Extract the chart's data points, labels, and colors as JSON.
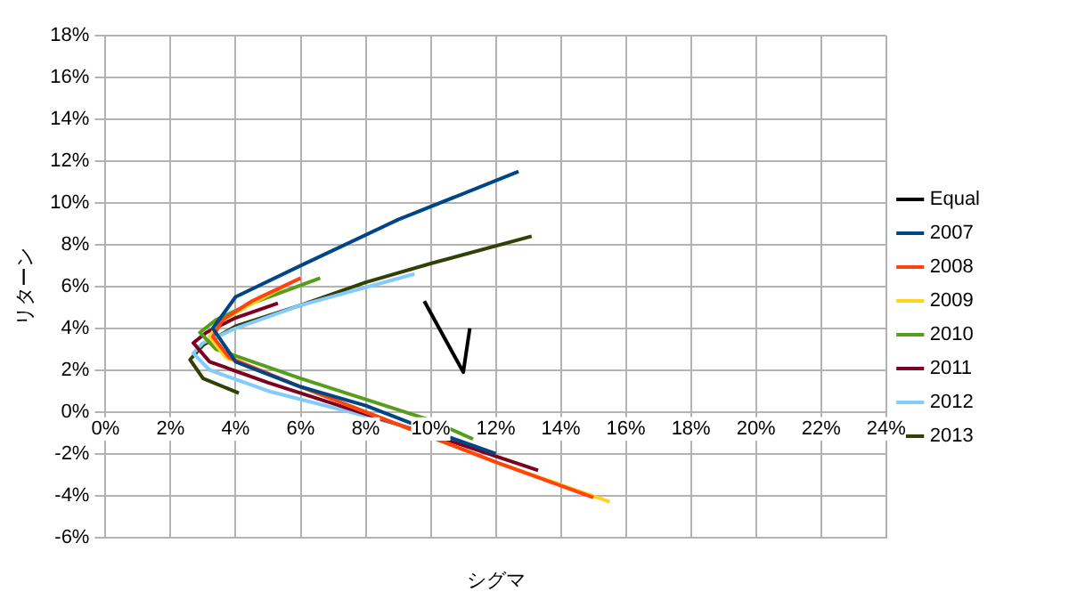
{
  "chart_data": {
    "type": "line",
    "xlabel": "シグマ",
    "ylabel": "リターン",
    "xlim": [
      0,
      24
    ],
    "ylim": [
      -6,
      18
    ],
    "xticks": [
      {
        "value": 0,
        "label": "0%"
      },
      {
        "value": 2,
        "label": "2%"
      },
      {
        "value": 4,
        "label": "4%"
      },
      {
        "value": 6,
        "label": "6%"
      },
      {
        "value": 8,
        "label": "8%"
      },
      {
        "value": 10,
        "label": "10%"
      },
      {
        "value": 12,
        "label": "12%"
      },
      {
        "value": 14,
        "label": "14%"
      },
      {
        "value": 16,
        "label": "16%"
      },
      {
        "value": 18,
        "label": "18%"
      },
      {
        "value": 20,
        "label": "20%"
      },
      {
        "value": 22,
        "label": "22%"
      },
      {
        "value": 24,
        "label": "24%"
      }
    ],
    "yticks": [
      {
        "value": -6,
        "label": "-6%"
      },
      {
        "value": -4,
        "label": "-4%"
      },
      {
        "value": -2,
        "label": "-2%"
      },
      {
        "value": 0,
        "label": "0%"
      },
      {
        "value": 2,
        "label": "2%"
      },
      {
        "value": 4,
        "label": "4%"
      },
      {
        "value": 6,
        "label": "6%"
      },
      {
        "value": 8,
        "label": "8%"
      },
      {
        "value": 10,
        "label": "10%"
      },
      {
        "value": 12,
        "label": "12%"
      },
      {
        "value": 14,
        "label": "14%"
      },
      {
        "value": 16,
        "label": "16%"
      },
      {
        "value": 18,
        "label": "18%"
      }
    ],
    "grid": true,
    "legend": "right",
    "series": [
      {
        "name": "Equal",
        "color": "#000000",
        "x": [
          9.8,
          11.0,
          11.2
        ],
        "values": [
          5.3,
          1.9,
          4.0
        ]
      },
      {
        "name": "2007",
        "color": "#004586",
        "x": [
          12.7,
          9,
          6,
          4,
          3.3,
          4,
          6,
          8,
          10,
          12
        ],
        "values": [
          11.5,
          9.2,
          7.0,
          5.5,
          4.0,
          2.4,
          1.2,
          0.3,
          -0.9,
          -2.0
        ]
      },
      {
        "name": "2008",
        "color": "#ff420e",
        "x": [
          6,
          4.5,
          3.6,
          3.3,
          3.8,
          6,
          9,
          12,
          15
        ],
        "values": [
          6.4,
          5.3,
          4.4,
          3.6,
          2.6,
          1.2,
          -0.6,
          -2.4,
          -4.1
        ]
      },
      {
        "name": "2009",
        "color": "#ffd320",
        "x": [
          5.5,
          4.3,
          3.5,
          3.2,
          3.7,
          6,
          9,
          12,
          15.5
        ],
        "values": [
          6.0,
          5.0,
          4.3,
          3.6,
          2.6,
          1.2,
          -0.6,
          -2.4,
          -4.3
        ]
      },
      {
        "name": "2010",
        "color": "#579d1c",
        "x": [
          6.6,
          4.5,
          3.4,
          2.9,
          3.4,
          6,
          8,
          10,
          11.3
        ],
        "values": [
          6.4,
          5.2,
          4.4,
          3.8,
          3.0,
          1.6,
          0.6,
          -0.4,
          -1.3
        ]
      },
      {
        "name": "2011",
        "color": "#7e0021",
        "x": [
          5.3,
          4,
          3.1,
          2.7,
          3.2,
          5,
          8,
          11,
          13.3
        ],
        "values": [
          5.2,
          4.5,
          3.8,
          3.3,
          2.4,
          1.4,
          -0.1,
          -1.6,
          -2.8
        ]
      },
      {
        "name": "2012",
        "color": "#83caff",
        "x": [
          9.5,
          6,
          4,
          3,
          2.7,
          3.2,
          5,
          8,
          9
        ],
        "values": [
          6.6,
          5.1,
          4.0,
          3.3,
          2.8,
          2.0,
          1.0,
          -0.2,
          -0.6
        ]
      },
      {
        "name": "2013",
        "color": "#314004",
        "x": [
          13.1,
          10,
          8,
          6,
          4,
          3,
          2.6,
          3,
          4.1
        ],
        "values": [
          8.4,
          7.1,
          6.2,
          5.1,
          4.1,
          3.2,
          2.5,
          1.6,
          0.9
        ]
      }
    ]
  }
}
